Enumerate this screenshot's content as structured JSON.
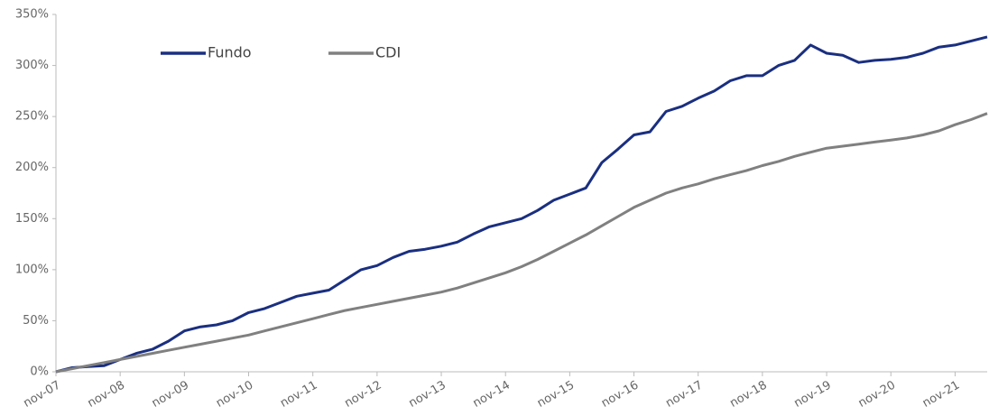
{
  "chart_data": {
    "type": "line",
    "categories": [
      "nov-07",
      null,
      null,
      null,
      "nov-08",
      null,
      null,
      null,
      "nov-09",
      null,
      null,
      null,
      "nov-10",
      null,
      null,
      null,
      "nov-11",
      null,
      null,
      null,
      "nov-12",
      null,
      null,
      null,
      "nov-13",
      null,
      null,
      null,
      "nov-14",
      null,
      null,
      null,
      "nov-15",
      null,
      null,
      null,
      "nov-16",
      null,
      null,
      null,
      "nov-17",
      null,
      null,
      null,
      "nov-18",
      null,
      null,
      null,
      "nov-19",
      null,
      null,
      null,
      "nov-20",
      null,
      null,
      null,
      "nov-21",
      null,
      null
    ],
    "series": [
      {
        "name": "Fundo",
        "color": "#1a2f80",
        "values": [
          0,
          4,
          5,
          6,
          12,
          18,
          22,
          30,
          40,
          44,
          46,
          50,
          58,
          62,
          68,
          74,
          77,
          80,
          90,
          100,
          104,
          112,
          118,
          120,
          123,
          127,
          135,
          142,
          146,
          150,
          158,
          168,
          174,
          180,
          205,
          218,
          232,
          235,
          255,
          260,
          268,
          275,
          285,
          290,
          290,
          300,
          305,
          320,
          312,
          310,
          303,
          305,
          306,
          308,
          312,
          318,
          320,
          324,
          328
        ]
      },
      {
        "name": "CDI",
        "color": "#808080",
        "values": [
          0,
          3,
          6,
          9,
          12,
          15,
          18,
          21,
          24,
          27,
          30,
          33,
          36,
          40,
          44,
          48,
          52,
          56,
          60,
          63,
          66,
          69,
          72,
          75,
          78,
          82,
          87,
          92,
          97,
          103,
          110,
          118,
          126,
          134,
          143,
          152,
          161,
          168,
          175,
          180,
          184,
          189,
          193,
          197,
          202,
          206,
          211,
          215,
          219,
          221,
          223,
          225,
          227,
          229,
          232,
          236,
          242,
          247,
          253
        ]
      }
    ],
    "ylim": [
      0,
      350
    ],
    "yticks": [
      {
        "value": 0,
        "label": "0%"
      },
      {
        "value": 50,
        "label": "50%"
      },
      {
        "value": 100,
        "label": "100%"
      },
      {
        "value": 150,
        "label": "150%"
      },
      {
        "value": 200,
        "label": "200%"
      },
      {
        "value": 250,
        "label": "250%"
      },
      {
        "value": 300,
        "label": "300%"
      },
      {
        "value": 350,
        "label": "350%"
      }
    ],
    "grid": false,
    "legend": "top-left"
  }
}
